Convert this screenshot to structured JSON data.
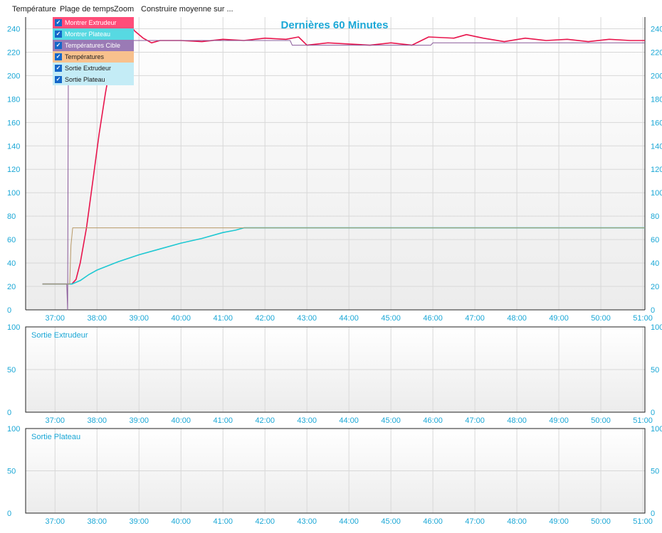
{
  "menu": {
    "items": [
      "Température",
      "Plage de temps",
      "Zoom",
      "Construire moyenne sur ..."
    ]
  },
  "colors": {
    "extruder": "#e8144c",
    "bed": "#1ec8d2",
    "target": "#8a5a9a",
    "bed_target": "#b89a68",
    "axis_text": "#1aa7d6",
    "title": "#1aa7d6",
    "panel_bg": "#f4f4f4"
  },
  "legend": {
    "items": [
      {
        "label": "Montrer Extrudeur",
        "color": "#ff4d79",
        "checked": true
      },
      {
        "label": "Montrer Plateau",
        "color": "#57d9e2",
        "checked": true
      },
      {
        "label": "Températures Cible",
        "color": "#9a7ab5",
        "checked": true
      },
      {
        "label": "Températures",
        "color": "#f8c18d",
        "checked": true
      },
      {
        "label": "Sortie Extrudeur",
        "color": "#c4ecf6",
        "checked": true
      },
      {
        "label": "Sortie Plateau",
        "color": "#c4ecf6",
        "checked": true
      }
    ]
  },
  "chart_data": [
    {
      "type": "line",
      "title": "Dernières 60 Minutes",
      "x_ticks": [
        "37:00",
        "38:00",
        "39:00",
        "40:00",
        "41:00",
        "42:00",
        "43:00",
        "44:00",
        "45:00",
        "46:00",
        "47:00",
        "48:00",
        "49:00",
        "50:00",
        "51:00"
      ],
      "xlim": [
        36.3,
        51.05
      ],
      "ylim": [
        0,
        250
      ],
      "y_ticks": [
        0,
        20,
        40,
        60,
        80,
        100,
        120,
        140,
        160,
        180,
        200,
        220,
        240
      ],
      "series": [
        {
          "name": "Montrer Extrudeur",
          "color": "#e8144c",
          "points": [
            [
              36.7,
              22
            ],
            [
              37.1,
              22
            ],
            [
              37.4,
              22
            ],
            [
              37.5,
              26
            ],
            [
              37.6,
              40
            ],
            [
              37.75,
              70
            ],
            [
              37.9,
              110
            ],
            [
              38.05,
              150
            ],
            [
              38.2,
              185
            ],
            [
              38.35,
              215
            ],
            [
              38.5,
              235
            ],
            [
              38.6,
              244
            ],
            [
              38.75,
              245
            ],
            [
              38.9,
              238
            ],
            [
              39.1,
              232
            ],
            [
              39.3,
              228
            ],
            [
              39.5,
              230
            ],
            [
              40.0,
              230
            ],
            [
              40.5,
              229
            ],
            [
              41.0,
              231
            ],
            [
              41.5,
              230
            ],
            [
              42.0,
              232
            ],
            [
              42.5,
              231
            ],
            [
              42.8,
              233
            ],
            [
              43.0,
              226
            ],
            [
              43.5,
              228
            ],
            [
              44.0,
              227
            ],
            [
              44.5,
              226
            ],
            [
              45.0,
              228
            ],
            [
              45.5,
              226
            ],
            [
              45.9,
              233
            ],
            [
              46.5,
              232
            ],
            [
              46.8,
              235
            ],
            [
              47.2,
              232
            ],
            [
              47.7,
              229
            ],
            [
              48.2,
              232
            ],
            [
              48.7,
              230
            ],
            [
              49.2,
              231
            ],
            [
              49.7,
              229
            ],
            [
              50.2,
              231
            ],
            [
              50.7,
              230
            ],
            [
              51.05,
              230
            ]
          ]
        },
        {
          "name": "Montrer Plateau",
          "color": "#1ec8d2",
          "points": [
            [
              36.7,
              22
            ],
            [
              37.4,
              22
            ],
            [
              37.6,
              25
            ],
            [
              37.8,
              30
            ],
            [
              38.0,
              34
            ],
            [
              38.5,
              41
            ],
            [
              39.0,
              47
            ],
            [
              39.5,
              52
            ],
            [
              40.0,
              57
            ],
            [
              40.5,
              61
            ],
            [
              41.0,
              66
            ],
            [
              41.3,
              68
            ],
            [
              41.5,
              70
            ],
            [
              42.0,
              70
            ],
            [
              43.0,
              70
            ],
            [
              44.0,
              70
            ],
            [
              45.0,
              70
            ],
            [
              46.0,
              70
            ],
            [
              47.0,
              70
            ],
            [
              48.0,
              70
            ],
            [
              49.0,
              70
            ],
            [
              50.0,
              70
            ],
            [
              51.05,
              70
            ]
          ]
        },
        {
          "name": "Températures Cible",
          "color": "#8a5a9a",
          "points": [
            [
              36.7,
              22
            ],
            [
              37.28,
              22
            ],
            [
              37.3,
              0
            ],
            [
              37.32,
              245
            ],
            [
              37.7,
              245
            ],
            [
              38.6,
              245
            ],
            [
              38.8,
              230
            ],
            [
              42.6,
              230
            ],
            [
              42.65,
              226
            ],
            [
              45.95,
              226
            ],
            [
              46.0,
              228
            ],
            [
              51.05,
              228
            ]
          ]
        },
        {
          "name": "Températures",
          "color": "#b89a68",
          "points": [
            [
              36.7,
              22
            ],
            [
              37.35,
              22
            ],
            [
              37.38,
              55
            ],
            [
              37.42,
              70
            ],
            [
              51.05,
              70
            ]
          ]
        }
      ]
    },
    {
      "type": "line",
      "title": "Sortie Extrudeur",
      "x_ticks": [
        "37:00",
        "38:00",
        "39:00",
        "40:00",
        "41:00",
        "42:00",
        "43:00",
        "44:00",
        "45:00",
        "46:00",
        "47:00",
        "48:00",
        "49:00",
        "50:00",
        "51:00"
      ],
      "xlim": [
        36.3,
        51.05
      ],
      "ylim": [
        0,
        100
      ],
      "y_ticks": [
        0,
        50,
        100
      ]
    },
    {
      "type": "line",
      "title": "Sortie Plateau",
      "x_ticks": [
        "37:00",
        "38:00",
        "39:00",
        "40:00",
        "41:00",
        "42:00",
        "43:00",
        "44:00",
        "45:00",
        "46:00",
        "47:00",
        "48:00",
        "49:00",
        "50:00",
        "51:00"
      ],
      "xlim": [
        36.3,
        51.05
      ],
      "ylim": [
        0,
        100
      ],
      "y_ticks": [
        0,
        50,
        100
      ]
    }
  ]
}
